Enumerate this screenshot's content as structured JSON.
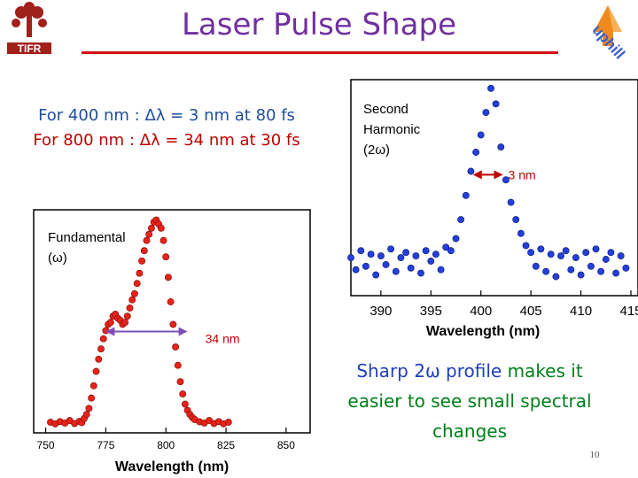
{
  "header": {
    "title": "Laser Pulse Shape",
    "logo_left_text": "TIFR",
    "logo_right_text": "uphill"
  },
  "specs": {
    "line1": "For 400 nm : Δλ = 3 nm at 80 fs",
    "line2": "For 800 nm : Δλ = 34 nm at 30 fs"
  },
  "note": {
    "part1": "Sharp 2ω profile",
    "part2": " makes it easier to see small spectral changes"
  },
  "slide_number": "10",
  "colors": {
    "title": "#7030a0",
    "accent_red": "#d01010",
    "fund_points": "#e8231a",
    "sh_points": "#2340d8",
    "fwhm_arrow": "#7a4fb8"
  },
  "chart_data": [
    {
      "type": "scatter",
      "name": "fundamental",
      "label": "Fundamental",
      "label2": "(ω)",
      "xlabel": "Wavelength (nm)",
      "ylabel": "",
      "xlim": [
        745,
        860
      ],
      "ylim": [
        -0.04,
        1.05
      ],
      "xticks": [
        750,
        775,
        800,
        825,
        850
      ],
      "grid": false,
      "points": [
        [
          752,
          0.012
        ],
        [
          754,
          0.004
        ],
        [
          756,
          0.015
        ],
        [
          758,
          0.008
        ],
        [
          760,
          0.02
        ],
        [
          762,
          0.006
        ],
        [
          764,
          0.016
        ],
        [
          765,
          0.01
        ],
        [
          766,
          0.03
        ],
        [
          767,
          0.05
        ],
        [
          768,
          0.08
        ],
        [
          769,
          0.13
        ],
        [
          770,
          0.19
        ],
        [
          771,
          0.26
        ],
        [
          772,
          0.32
        ],
        [
          773,
          0.37
        ],
        [
          774,
          0.42
        ],
        [
          775,
          0.46
        ],
        [
          776,
          0.49
        ],
        [
          777,
          0.5
        ],
        [
          778,
          0.53
        ],
        [
          779,
          0.54
        ],
        [
          780,
          0.52
        ],
        [
          781,
          0.51
        ],
        [
          782,
          0.49
        ],
        [
          783,
          0.5
        ],
        [
          784,
          0.53
        ],
        [
          785,
          0.57
        ],
        [
          786,
          0.61
        ],
        [
          787,
          0.64
        ],
        [
          788,
          0.69
        ],
        [
          789,
          0.74
        ],
        [
          790,
          0.8
        ],
        [
          791,
          0.85
        ],
        [
          792,
          0.9
        ],
        [
          793,
          0.93
        ],
        [
          794,
          0.96
        ],
        [
          795,
          0.99
        ],
        [
          796,
          1.0
        ],
        [
          797,
          0.98
        ],
        [
          798,
          0.96
        ],
        [
          799,
          0.9
        ],
        [
          800,
          0.82
        ],
        [
          801,
          0.72
        ],
        [
          802,
          0.6
        ],
        [
          803,
          0.49
        ],
        [
          804,
          0.38
        ],
        [
          805,
          0.29
        ],
        [
          806,
          0.21
        ],
        [
          807,
          0.15
        ],
        [
          808,
          0.1
        ],
        [
          809,
          0.07
        ],
        [
          810,
          0.05
        ],
        [
          811,
          0.035
        ],
        [
          812,
          0.025
        ],
        [
          814,
          0.014
        ],
        [
          816,
          0.008
        ],
        [
          818,
          0.02
        ],
        [
          820,
          0.006
        ],
        [
          822,
          0.015
        ],
        [
          824,
          0.004
        ],
        [
          826,
          0.012
        ]
      ],
      "fwhm": {
        "from": 775,
        "to": 809,
        "y": 0.455,
        "label": "34 nm"
      }
    },
    {
      "type": "scatter",
      "name": "second-harmonic",
      "label": "Second",
      "label2": "Harmonic",
      "label3": "(2ω)",
      "xlabel": "Wavelength (nm)",
      "ylabel": "",
      "xlim": [
        387,
        415
      ],
      "ylim": [
        -0.2,
        1.05
      ],
      "xticks": [
        390,
        395,
        400,
        405,
        410,
        415
      ],
      "grid": false,
      "points": [
        [
          387,
          0.02
        ],
        [
          387.5,
          -0.05
        ],
        [
          388,
          0.06
        ],
        [
          388.5,
          -0.03
        ],
        [
          389,
          0.04
        ],
        [
          389.5,
          -0.08
        ],
        [
          390,
          0.03
        ],
        [
          390.5,
          -0.02
        ],
        [
          391,
          0.07
        ],
        [
          391.5,
          -0.06
        ],
        [
          392,
          0.02
        ],
        [
          392.5,
          0.05
        ],
        [
          393,
          -0.04
        ],
        [
          393.5,
          0.03
        ],
        [
          394,
          -0.07
        ],
        [
          394.5,
          0.06
        ],
        [
          395,
          0.0
        ],
        [
          395.5,
          0.04
        ],
        [
          396,
          -0.05
        ],
        [
          396.5,
          0.08
        ],
        [
          397,
          0.06
        ],
        [
          397.5,
          0.13
        ],
        [
          398,
          0.24
        ],
        [
          398.5,
          0.38
        ],
        [
          399,
          0.52
        ],
        [
          399.5,
          0.63
        ],
        [
          400,
          0.73
        ],
        [
          400.5,
          0.86
        ],
        [
          401,
          1.0
        ],
        [
          401.5,
          0.91
        ],
        [
          402,
          0.66
        ],
        [
          402.5,
          0.47
        ],
        [
          403,
          0.34
        ],
        [
          403.5,
          0.24
        ],
        [
          404,
          0.16
        ],
        [
          404.5,
          0.09
        ],
        [
          405,
          0.05
        ],
        [
          405.5,
          -0.03
        ],
        [
          406,
          0.07
        ],
        [
          406.5,
          -0.06
        ],
        [
          407,
          0.04
        ],
        [
          407.5,
          -0.09
        ],
        [
          408,
          0.03
        ],
        [
          408.5,
          0.06
        ],
        [
          409,
          -0.05
        ],
        [
          409.5,
          0.02
        ],
        [
          410,
          -0.08
        ],
        [
          410.5,
          0.05
        ],
        [
          411,
          -0.03
        ],
        [
          411.5,
          0.07
        ],
        [
          412,
          -0.06
        ],
        [
          412.5,
          0.01
        ],
        [
          413,
          0.05
        ],
        [
          413.5,
          -0.07
        ],
        [
          414,
          0.03
        ],
        [
          414.5,
          -0.04
        ]
      ],
      "fwhm": {
        "from": 399.2,
        "to": 402.2,
        "y": 0.5,
        "label": "3 nm"
      }
    }
  ]
}
